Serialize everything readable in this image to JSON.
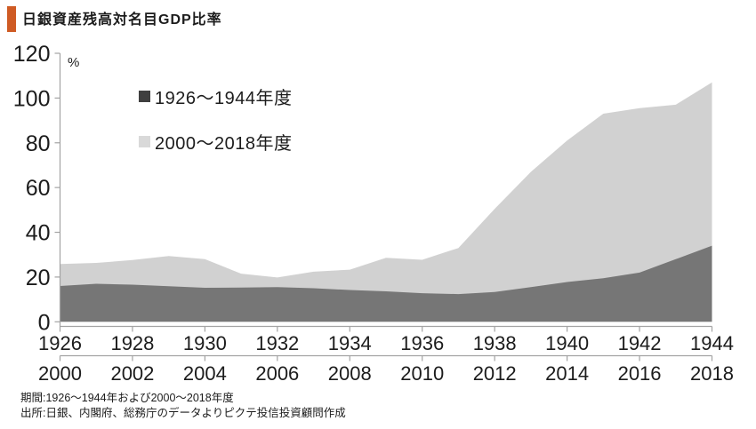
{
  "header": {
    "title": "日銀資産残高対名目GDP比率",
    "accent_color": "#cf5b24"
  },
  "chart_data": {
    "type": "area",
    "title": "日銀資産残高対名目GDP比率",
    "unit_label": "%",
    "ylim": [
      0,
      120
    ],
    "ytick_values": [
      0,
      20,
      40,
      60,
      80,
      100,
      120
    ],
    "ytick_labels": [
      "0",
      "20",
      "40",
      "60",
      "80",
      "100",
      "120"
    ],
    "grid": false,
    "legend_position": "top-left-inside",
    "axis_color": "#a3a3a3",
    "text_color": "#1c1c1c",
    "x_axis_rows": [
      {
        "labels": [
          "1926",
          "1928",
          "1930",
          "1932",
          "1934",
          "1936",
          "1938",
          "1940",
          "1942",
          "1944"
        ]
      },
      {
        "labels": [
          "2000",
          "2002",
          "2004",
          "2006",
          "2008",
          "2010",
          "2012",
          "2014",
          "2016",
          "2018"
        ]
      }
    ],
    "series": [
      {
        "name": "1926〜1944年度",
        "fill": "#767676",
        "legend_swatch": "#3f3f3f",
        "x": [
          1926,
          1927,
          1928,
          1929,
          1930,
          1931,
          1932,
          1933,
          1934,
          1935,
          1936,
          1937,
          1938,
          1939,
          1940,
          1941,
          1942,
          1943,
          1944
        ],
        "values": [
          16.0,
          17.0,
          16.6,
          15.9,
          15.2,
          15.3,
          15.5,
          15.0,
          14.2,
          13.6,
          12.8,
          12.4,
          13.3,
          15.5,
          17.8,
          19.5,
          22.0,
          28.0,
          34.0
        ]
      },
      {
        "name": "2000〜2018年度",
        "fill": "#d1d1d1",
        "legend_swatch": "#d9d9d9",
        "x": [
          2000,
          2001,
          2002,
          2003,
          2004,
          2005,
          2006,
          2007,
          2008,
          2009,
          2010,
          2011,
          2012,
          2013,
          2014,
          2015,
          2016,
          2017,
          2018
        ],
        "values": [
          25.8,
          26.3,
          27.6,
          29.4,
          28.0,
          21.5,
          19.8,
          22.4,
          23.3,
          28.6,
          27.7,
          33.0,
          50.5,
          67.0,
          81.0,
          93.0,
          95.5,
          97.0,
          107.0
        ]
      }
    ]
  },
  "footer": {
    "period": "期間:1926〜1944年および2000〜2018年度",
    "source": "出所:日銀、内閣府、総務庁のデータよりピクテ投信投資顧問作成"
  }
}
